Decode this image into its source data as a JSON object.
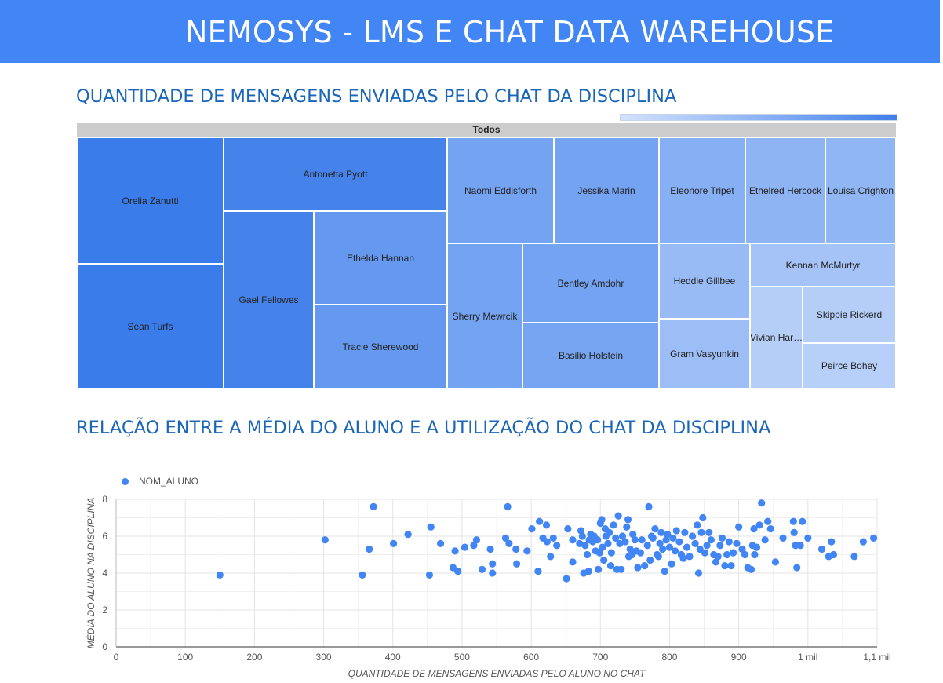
{
  "header": {
    "title": "NEMOSYS - LMS E CHAT DATA WAREHOUSE"
  },
  "sections": {
    "treemap_title": "QUANTIDADE DE MENSAGENS ENVIADAS PELO CHAT DA DISCIPLINA",
    "scatter_title": "RELAÇÃO ENTRE A MÉDIA DO ALUNO E A UTILIZAÇÃO DO CHAT DA DISCIPLINA"
  },
  "colors": {
    "header": "#4285f4",
    "title": "#1a66b8",
    "point": "#4285f4",
    "grid": "#e6e6e6"
  },
  "chart_data": [
    {
      "type": "treemap",
      "root_label": "Todos",
      "items": [
        {
          "name": "Orelia Zanutti",
          "level": 1.0
        },
        {
          "name": "Sean Turfs",
          "level": 1.0
        },
        {
          "name": "Antonetta Pyott",
          "level": 0.93
        },
        {
          "name": "Gael Fellowes",
          "level": 0.93
        },
        {
          "name": "Ethelda Hannan",
          "level": 0.72
        },
        {
          "name": "Tracie Sherewood",
          "level": 0.72
        },
        {
          "name": "Naomi Eddisforth",
          "level": 0.62
        },
        {
          "name": "Jessika Marin",
          "level": 0.62
        },
        {
          "name": "Sherry Mewrcik",
          "level": 0.62
        },
        {
          "name": "Bentley Amdohr",
          "level": 0.62
        },
        {
          "name": "Basilio Holstein",
          "level": 0.6
        },
        {
          "name": "Eleonore Tripet",
          "level": 0.5
        },
        {
          "name": "Ethelred Hercock",
          "level": 0.45
        },
        {
          "name": "Louisa Crighton",
          "level": 0.43
        },
        {
          "name": "Heddie Gillbee",
          "level": 0.38
        },
        {
          "name": "Gram Vasyunkin",
          "level": 0.36
        },
        {
          "name": "Kennan McMurtyr",
          "level": 0.3
        },
        {
          "name": "Vivian Har…",
          "level": 0.2
        },
        {
          "name": "Skippie Rickerd",
          "level": 0.2
        },
        {
          "name": "Peirce Bohey",
          "level": 0.18
        }
      ]
    },
    {
      "type": "scatter",
      "legend": "NOM_ALUNO",
      "legend_position": "top-left",
      "xlabel": "QUANTIDADE DE MENSAGENS ENVIADAS PELO ALUNO NO CHAT",
      "ylabel": "MÉDIA DO ALUNO NA DISCIPLINA",
      "xlim": [
        0,
        1100
      ],
      "ylim": [
        0,
        8
      ],
      "x_ticks": [
        {
          "v": 0,
          "label": "0"
        },
        {
          "v": 100,
          "label": "100"
        },
        {
          "v": 200,
          "label": "200"
        },
        {
          "v": 300,
          "label": "300"
        },
        {
          "v": 400,
          "label": "400"
        },
        {
          "v": 500,
          "label": "500"
        },
        {
          "v": 600,
          "label": "600"
        },
        {
          "v": 700,
          "label": "700"
        },
        {
          "v": 800,
          "label": "800"
        },
        {
          "v": 900,
          "label": "900"
        },
        {
          "v": 1000,
          "label": "1 mil"
        },
        {
          "v": 1100,
          "label": "1,1 mil"
        }
      ],
      "y_ticks": [
        {
          "v": 0,
          "label": "0"
        },
        {
          "v": 2,
          "label": "2"
        },
        {
          "v": 4,
          "label": "4"
        },
        {
          "v": 6,
          "label": "6"
        },
        {
          "v": 8,
          "label": "8"
        }
      ],
      "grid": true,
      "points": [
        [
          150,
          3.9
        ],
        [
          302,
          5.8
        ],
        [
          356,
          3.9
        ],
        [
          366,
          5.3
        ],
        [
          372,
          7.6
        ],
        [
          401,
          5.6
        ],
        [
          422,
          6.1
        ],
        [
          453,
          3.9
        ],
        [
          455,
          6.5
        ],
        [
          469,
          5.6
        ],
        [
          487,
          4.3
        ],
        [
          490,
          5.2
        ],
        [
          494,
          4.1
        ],
        [
          504,
          5.4
        ],
        [
          517,
          5.5
        ],
        [
          521,
          5.8
        ],
        [
          529,
          4.2
        ],
        [
          541,
          5.3
        ],
        [
          544,
          4.0
        ],
        [
          544,
          4.5
        ],
        [
          563,
          5.9
        ],
        [
          566,
          7.6
        ],
        [
          568,
          5.6
        ],
        [
          578,
          5.3
        ],
        [
          579,
          4.5
        ],
        [
          594,
          5.2
        ],
        [
          601,
          6.4
        ],
        [
          610,
          4.1
        ],
        [
          612,
          6.8
        ],
        [
          617,
          5.9
        ],
        [
          622,
          6.6
        ],
        [
          623,
          5.7
        ],
        [
          628,
          4.9
        ],
        [
          632,
          5.9
        ],
        [
          637,
          5.5
        ],
        [
          651,
          3.7
        ],
        [
          653,
          6.4
        ],
        [
          660,
          4.6
        ],
        [
          660,
          5.8
        ],
        [
          670,
          5.6
        ],
        [
          672,
          6.3
        ],
        [
          674,
          6.0
        ],
        [
          676,
          4.0
        ],
        [
          678,
          5.5
        ],
        [
          681,
          5.0
        ],
        [
          683,
          4.1
        ],
        [
          684,
          5.8
        ],
        [
          686,
          6.1
        ],
        [
          689,
          5.7
        ],
        [
          691,
          6.0
        ],
        [
          693,
          5.2
        ],
        [
          696,
          5.8
        ],
        [
          697,
          4.2
        ],
        [
          699,
          5.1
        ],
        [
          700,
          6.7
        ],
        [
          702,
          6.9
        ],
        [
          703,
          5.4
        ],
        [
          705,
          4.7
        ],
        [
          707,
          6.4
        ],
        [
          708,
          6.0
        ],
        [
          711,
          5.6
        ],
        [
          713,
          6.2
        ],
        [
          715,
          4.4
        ],
        [
          716,
          5.1
        ],
        [
          719,
          6.6
        ],
        [
          722,
          5.9
        ],
        [
          724,
          4.2
        ],
        [
          726,
          7.1
        ],
        [
          728,
          5.6
        ],
        [
          730,
          4.2
        ],
        [
          732,
          6.0
        ],
        [
          736,
          5.7
        ],
        [
          738,
          6.5
        ],
        [
          740,
          6.9
        ],
        [
          741,
          4.9
        ],
        [
          743,
          5.3
        ],
        [
          746,
          5.0
        ],
        [
          747,
          6.1
        ],
        [
          750,
          5.8
        ],
        [
          752,
          5.2
        ],
        [
          754,
          4.3
        ],
        [
          758,
          5.1
        ],
        [
          760,
          5.8
        ],
        [
          764,
          4.4
        ],
        [
          768,
          5.5
        ],
        [
          770,
          7.6
        ],
        [
          772,
          4.7
        ],
        [
          774,
          6.0
        ],
        [
          776,
          5.9
        ],
        [
          779,
          6.4
        ],
        [
          782,
          5.0
        ],
        [
          784,
          4.9
        ],
        [
          786,
          5.6
        ],
        [
          788,
          6.2
        ],
        [
          790,
          5.3
        ],
        [
          793,
          4.1
        ],
        [
          795,
          5.8
        ],
        [
          797,
          6.1
        ],
        [
          800,
          5.4
        ],
        [
          803,
          4.5
        ],
        [
          805,
          5.9
        ],
        [
          808,
          5.2
        ],
        [
          810,
          6.3
        ],
        [
          814,
          5.7
        ],
        [
          817,
          5.0
        ],
        [
          820,
          4.8
        ],
        [
          822,
          6.2
        ],
        [
          825,
          5.4
        ],
        [
          829,
          4.9
        ],
        [
          833,
          6.0
        ],
        [
          837,
          5.6
        ],
        [
          840,
          6.6
        ],
        [
          842,
          4.0
        ],
        [
          844,
          5.3
        ],
        [
          846,
          6.2
        ],
        [
          848,
          7.0
        ],
        [
          851,
          5.1
        ],
        [
          854,
          5.5
        ],
        [
          857,
          6.2
        ],
        [
          860,
          5.8
        ],
        [
          864,
          5.0
        ],
        [
          867,
          4.6
        ],
        [
          870,
          4.9
        ],
        [
          873,
          5.5
        ],
        [
          876,
          5.9
        ],
        [
          880,
          4.4
        ],
        [
          883,
          5.0
        ],
        [
          886,
          5.7
        ],
        [
          889,
          4.4
        ],
        [
          892,
          5.1
        ],
        [
          897,
          5.6
        ],
        [
          900,
          6.5
        ],
        [
          905,
          5.3
        ],
        [
          909,
          5.0
        ],
        [
          913,
          4.3
        ],
        [
          918,
          4.2
        ],
        [
          920,
          5.5
        ],
        [
          922,
          6.4
        ],
        [
          923,
          5.0
        ],
        [
          926,
          5.4
        ],
        [
          930,
          6.6
        ],
        [
          933,
          7.8
        ],
        [
          938,
          5.8
        ],
        [
          942,
          6.8
        ],
        [
          946,
          6.4
        ],
        [
          953,
          4.6
        ],
        [
          964,
          5.9
        ],
        [
          979,
          6.8
        ],
        [
          980,
          6.2
        ],
        [
          982,
          5.5
        ],
        [
          984,
          4.3
        ],
        [
          989,
          5.5
        ],
        [
          992,
          6.8
        ],
        [
          1000,
          5.9
        ],
        [
          1020,
          5.3
        ],
        [
          1030,
          4.9
        ],
        [
          1034,
          5.7
        ],
        [
          1037,
          5.0
        ],
        [
          1067,
          4.9
        ],
        [
          1080,
          5.7
        ],
        [
          1095,
          5.9
        ]
      ]
    }
  ]
}
